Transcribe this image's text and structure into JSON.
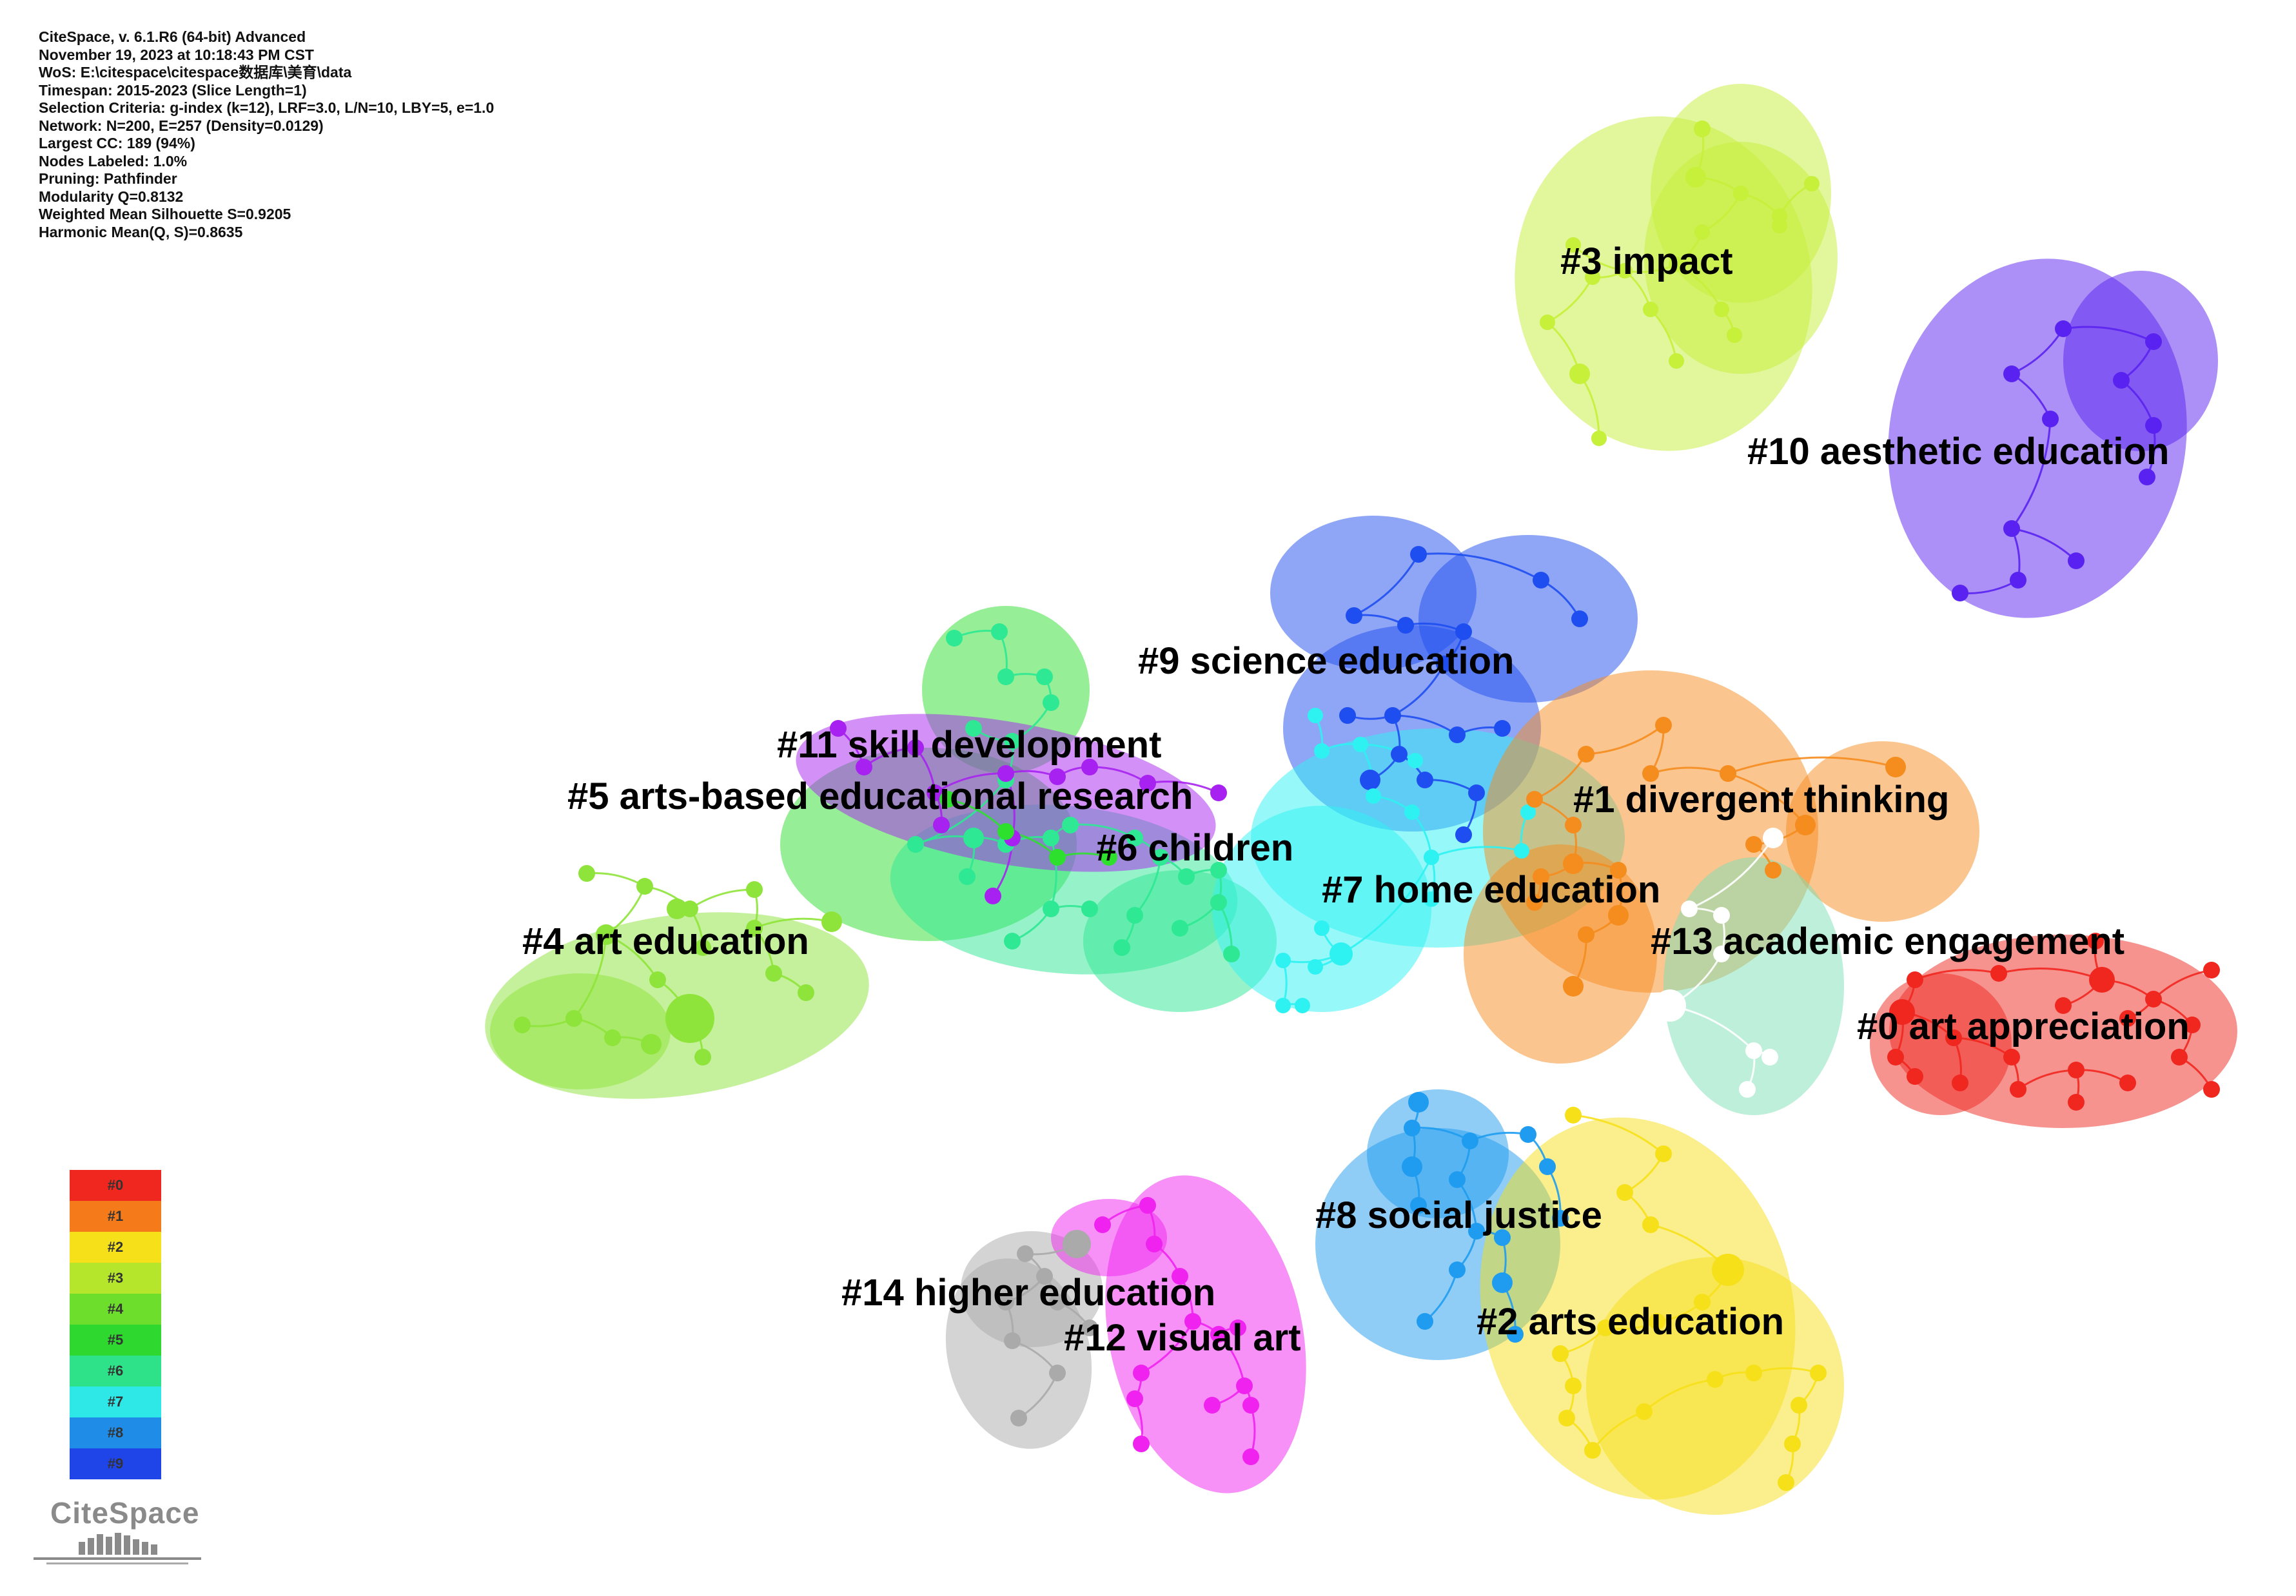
{
  "header_lines": [
    "CiteSpace, v. 6.1.R6 (64-bit) Advanced",
    "November 19, 2023 at 10:18:43 PM CST",
    "WoS: E:\\citespace\\citespace数据库\\美育\\data",
    "Timespan: 2015-2023 (Slice Length=1)",
    "Selection Criteria: g-index (k=12), LRF=3.0, L/N=10, LBY=5, e=1.0",
    "Network: N=200, E=257 (Density=0.0129)",
    "Largest CC: 189 (94%)",
    "Nodes Labeled: 1.0%",
    "Pruning: Pathfinder",
    "Modularity Q=0.8132",
    "Weighted Mean Silhouette S=0.9205",
    "Harmonic Mean(Q, S)=0.8635"
  ],
  "clusters": [
    {
      "id": "#0",
      "label": "#0 art appreciation",
      "color": "#f0271f"
    },
    {
      "id": "#1",
      "label": "#1 divergent thinking",
      "color": "#f58c1e"
    },
    {
      "id": "#2",
      "label": "#2 arts education",
      "color": "#f6e01a"
    },
    {
      "id": "#3",
      "label": "#3 impact",
      "color": "#c6f03a"
    },
    {
      "id": "#4",
      "label": "#4 art education",
      "color": "#8ee43a"
    },
    {
      "id": "#5",
      "label": "#5 arts-based educational research",
      "color": "#2ee02e"
    },
    {
      "id": "#6",
      "label": "#6 children",
      "color": "#2ee894"
    },
    {
      "id": "#7",
      "label": "#7 home education",
      "color": "#2ef2f2"
    },
    {
      "id": "#8",
      "label": "#8 social justice",
      "color": "#1f9cf0"
    },
    {
      "id": "#9",
      "label": "#9 science education",
      "color": "#1f4ef0"
    },
    {
      "id": "#10",
      "label": "#10 aesthetic education",
      "color": "#5a22f0"
    },
    {
      "id": "#11",
      "label": "#11 skill development",
      "color": "#a722f0"
    },
    {
      "id": "#12",
      "label": "#12 visual art",
      "color": "#f022f0"
    },
    {
      "id": "#13",
      "label": "#13 academic engagement",
      "color": "#ffffff"
    },
    {
      "id": "#14",
      "label": "#14 higher education",
      "color": "#aaaaaa"
    }
  ],
  "legend": [
    {
      "label": "#0",
      "color": "#f0271f"
    },
    {
      "label": "#1",
      "color": "#f57a1a"
    },
    {
      "label": "#2",
      "color": "#f6e01a"
    },
    {
      "label": "#3",
      "color": "#b6e62c"
    },
    {
      "label": "#4",
      "color": "#6ede2c"
    },
    {
      "label": "#5",
      "color": "#2ed82e"
    },
    {
      "label": "#6",
      "color": "#2ee28a"
    },
    {
      "label": "#7",
      "color": "#2ee8e8"
    },
    {
      "label": "#8",
      "color": "#1f8ce8"
    },
    {
      "label": "#9",
      "color": "#1f44e8"
    }
  ],
  "logo": {
    "text": "CiteSpace"
  }
}
